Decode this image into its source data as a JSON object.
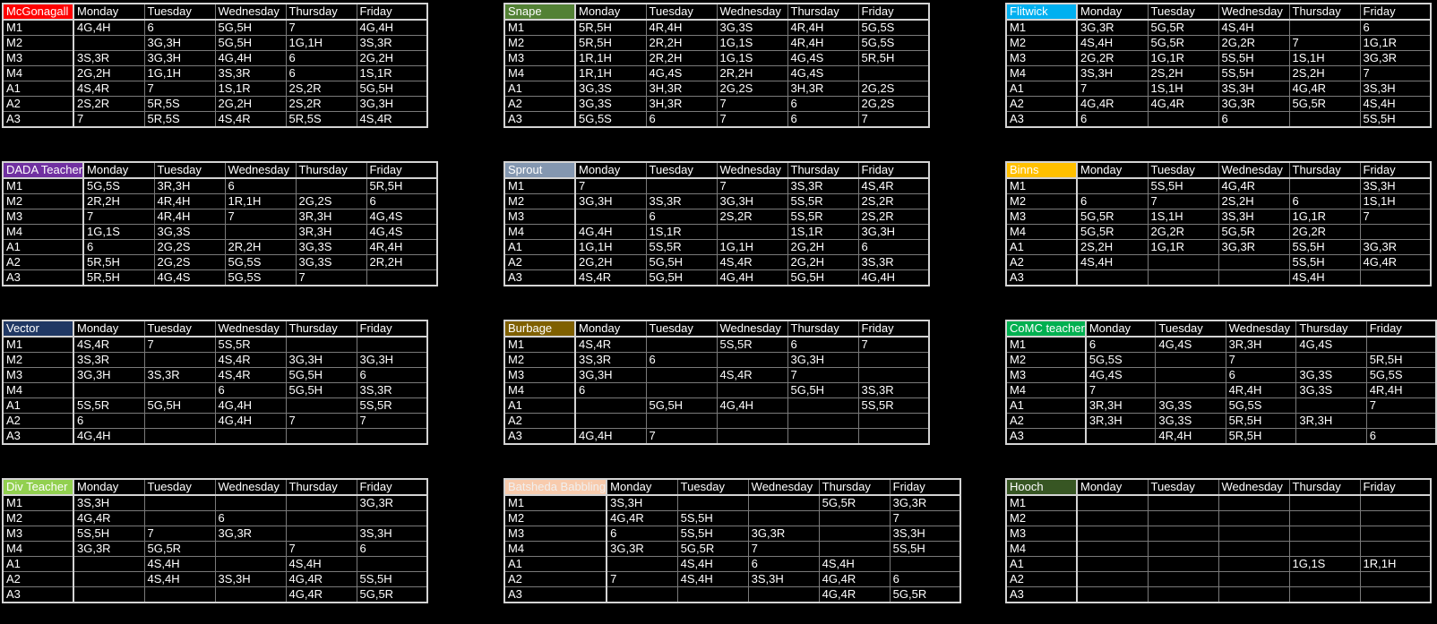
{
  "days": [
    "Monday",
    "Tuesday",
    "Wednesday",
    "Thursday",
    "Friday"
  ],
  "periods": [
    "M1",
    "M2",
    "M3",
    "M4",
    "A1",
    "A2",
    "A3"
  ],
  "blocks": [
    {
      "name": "McGonagall",
      "color": "#ff0000",
      "rows": [
        [
          "4G,4H",
          "6",
          "5G,5H",
          "7",
          "4G,4H"
        ],
        [
          "",
          "3G,3H",
          "5G,5H",
          "1G,1H",
          "3S,3R"
        ],
        [
          "3S,3R",
          "3G,3H",
          "4G,4H",
          "6",
          "2G,2H"
        ],
        [
          "2G,2H",
          "1G,1H",
          "3S,3R",
          "6",
          "1S,1R"
        ],
        [
          "4S,4R",
          "7",
          "1S,1R",
          "2S,2R",
          "5G,5H"
        ],
        [
          "2S,2R",
          "5R,5S",
          "2G,2H",
          "2S,2R",
          "3G,3H"
        ],
        [
          "7",
          "5R,5S",
          "4S,4R",
          "5R,5S",
          "4S,4R"
        ]
      ]
    },
    {
      "name": "Snape",
      "color": "#538135",
      "rows": [
        [
          "5R,5H",
          "4R,4H",
          "3G,3S",
          "4R,4H",
          "5G,5S"
        ],
        [
          "5R,5H",
          "2R,2H",
          "1G,1S",
          "4R,4H",
          "5G,5S"
        ],
        [
          "1R,1H",
          "2R,2H",
          "1G,1S",
          "4G,4S",
          "5R,5H"
        ],
        [
          "1R,1H",
          "4G,4S",
          "2R,2H",
          "4G,4S",
          ""
        ],
        [
          "3G,3S",
          "3H,3R",
          "2G,2S",
          "3H,3R",
          "2G,2S"
        ],
        [
          "3G,3S",
          "3H,3R",
          "7",
          "6",
          "2G,2S"
        ],
        [
          "5G,5S",
          "6",
          "7",
          "6",
          "7"
        ]
      ]
    },
    {
      "name": "Flitwick",
      "color": "#00b0f0",
      "rows": [
        [
          "3G,3R",
          "5G,5R",
          "4S,4H",
          "",
          "6"
        ],
        [
          "4S,4H",
          "5G,5R",
          "2G,2R",
          "7",
          "1G,1R"
        ],
        [
          "2G,2R",
          "1G,1R",
          "5S,5H",
          "1S,1H",
          "3G,3R"
        ],
        [
          "3S,3H",
          "2S,2H",
          "5S,5H",
          "2S,2H",
          "7"
        ],
        [
          "7",
          "1S,1H",
          "3S,3H",
          "4G,4R",
          "3S,3H"
        ],
        [
          "4G,4R",
          "4G,4R",
          "3G,3R",
          "5G,5R",
          "4S,4H"
        ],
        [
          "6",
          "",
          "6",
          "",
          "5S,5H"
        ]
      ]
    },
    {
      "name": "DADA Teacher",
      "color": "#7030a0",
      "rows": [
        [
          "5G,5S",
          "3R,3H",
          "6",
          "",
          "5R,5H"
        ],
        [
          "2R,2H",
          "4R,4H",
          "1R,1H",
          "2G,2S",
          "6"
        ],
        [
          "7",
          "4R,4H",
          "7",
          "3R,3H",
          "4G,4S"
        ],
        [
          "1G,1S",
          "3G,3S",
          "",
          "3R,3H",
          "4G,4S"
        ],
        [
          "6",
          "2G,2S",
          "2R,2H",
          "3G,3S",
          "4R,4H"
        ],
        [
          "5R,5H",
          "2G,2S",
          "5G,5S",
          "3G,3S",
          "2R,2H"
        ],
        [
          "5R,5H",
          "4G,4S",
          "5G,5S",
          "7",
          ""
        ]
      ]
    },
    {
      "name": "Sprout",
      "color": "#8497b0",
      "rows": [
        [
          "7",
          "",
          "7",
          "3S,3R",
          "4S,4R"
        ],
        [
          "3G,3H",
          "3S,3R",
          "3G,3H",
          "5S,5R",
          "2S,2R"
        ],
        [
          "",
          "6",
          "2S,2R",
          "5S,5R",
          "2S,2R"
        ],
        [
          "4G,4H",
          "1S,1R",
          "",
          "1S,1R",
          "3G,3H"
        ],
        [
          "1G,1H",
          "5S,5R",
          "1G,1H",
          "2G,2H",
          "6"
        ],
        [
          "2G,2H",
          "5G,5H",
          "4S,4R",
          "2G,2H",
          "3S,3R"
        ],
        [
          "4S,4R",
          "5G,5H",
          "4G,4H",
          "5G,5H",
          "4G,4H"
        ]
      ]
    },
    {
      "name": "Binns",
      "color": "#ffc000",
      "rows": [
        [
          "",
          "5S,5H",
          "4G,4R",
          "",
          "3S,3H"
        ],
        [
          "6",
          "7",
          "2S,2H",
          "6",
          "1S,1H"
        ],
        [
          "5G,5R",
          "1S,1H",
          "3S,3H",
          "1G,1R",
          "7"
        ],
        [
          "5G,5R",
          "2G,2R",
          "5G,5R",
          "2G,2R",
          ""
        ],
        [
          "2S,2H",
          "1G,1R",
          "3G,3R",
          "5S,5H",
          "3G,3R"
        ],
        [
          "4S,4H",
          "",
          "",
          "5S,5H",
          "4G,4R"
        ],
        [
          "",
          "",
          "",
          "4S,4H",
          ""
        ]
      ]
    },
    {
      "name": "Vector",
      "color": "#203864",
      "rows": [
        [
          "4S,4R",
          "7",
          "5S,5R",
          "",
          ""
        ],
        [
          "3S,3R",
          "",
          "4S,4R",
          "3G,3H",
          "3G,3H"
        ],
        [
          "3G,3H",
          "3S,3R",
          "4S,4R",
          "5G,5H",
          "6"
        ],
        [
          "",
          "",
          "6",
          "5G,5H",
          "3S,3R"
        ],
        [
          "5S,5R",
          "5G,5H",
          "4G,4H",
          "",
          "5S,5R"
        ],
        [
          "6",
          "",
          "4G,4H",
          "7",
          "7"
        ],
        [
          "4G,4H",
          "",
          "",
          "",
          ""
        ]
      ]
    },
    {
      "name": "Burbage",
      "color": "#7f6000",
      "rows": [
        [
          "4S,4R",
          "",
          "5S,5R",
          "6",
          "7"
        ],
        [
          "3S,3R",
          "6",
          "",
          "3G,3H",
          ""
        ],
        [
          "3G,3H",
          "",
          "4S,4R",
          "7",
          ""
        ],
        [
          "6",
          "",
          "",
          "5G,5H",
          "3S,3R"
        ],
        [
          "",
          "5G,5H",
          "4G,4H",
          "",
          "5S,5R"
        ],
        [
          "",
          "",
          "",
          "",
          ""
        ],
        [
          "4G,4H",
          "7",
          "",
          "",
          ""
        ]
      ]
    },
    {
      "name": "CoMC teacher",
      "color": "#00b050",
      "rows": [
        [
          "6",
          "4G,4S",
          "3R,3H",
          "4G,4S",
          ""
        ],
        [
          "5G,5S",
          "",
          "7",
          "",
          "5R,5H"
        ],
        [
          "4G,4S",
          "",
          "6",
          "3G,3S",
          "5G,5S"
        ],
        [
          "7",
          "",
          "4R,4H",
          "3G,3S",
          "4R,4H"
        ],
        [
          "3R,3H",
          "3G,3S",
          "5G,5S",
          "",
          "7"
        ],
        [
          "3R,3H",
          "3G,3S",
          "5R,5H",
          "3R,3H",
          ""
        ],
        [
          "",
          "4R,4H",
          "5R,5H",
          "",
          "6"
        ]
      ]
    },
    {
      "name": "Div Teacher",
      "color": "#92d050",
      "rows": [
        [
          "3S,3H",
          "",
          "",
          "",
          "3G,3R"
        ],
        [
          "4G,4R",
          "",
          "6",
          "",
          ""
        ],
        [
          "5S,5H",
          "7",
          "3G,3R",
          "",
          "3S,3H"
        ],
        [
          "3G,3R",
          "5G,5R",
          "",
          "7",
          "6"
        ],
        [
          "",
          "4S,4H",
          "",
          "4S,4H",
          ""
        ],
        [
          "",
          "4S,4H",
          "3S,3H",
          "4G,4R",
          "5S,5H"
        ],
        [
          "",
          "",
          "",
          "4G,4R",
          "5G,5R"
        ]
      ]
    },
    {
      "name": "Batsheda Babbling",
      "color": "#f8cbad",
      "rows": [
        [
          "3S,3H",
          "",
          "",
          "5G,5R",
          "3G,3R"
        ],
        [
          "4G,4R",
          "5S,5H",
          "",
          "",
          "7"
        ],
        [
          "6",
          "5S,5H",
          "3G,3R",
          "",
          "3S,3H"
        ],
        [
          "3G,3R",
          "5G,5R",
          "7",
          "",
          "5S,5H"
        ],
        [
          "",
          "4S,4H",
          "6",
          "4S,4H",
          ""
        ],
        [
          "7",
          "4S,4H",
          "3S,3H",
          "4G,4R",
          "6"
        ],
        [
          "",
          "",
          "",
          "4G,4R",
          "5G,5R"
        ]
      ]
    },
    {
      "name": "Hooch",
      "color": "#375623",
      "rows": [
        [
          "",
          "",
          "",
          "",
          ""
        ],
        [
          "",
          "",
          "",
          "",
          ""
        ],
        [
          "",
          "",
          "",
          "",
          ""
        ],
        [
          "",
          "",
          "",
          "",
          ""
        ],
        [
          "",
          "",
          "",
          "1G,1S",
          "1R,1H"
        ],
        [
          "",
          "",
          "",
          "",
          ""
        ],
        [
          "",
          "",
          "",
          "",
          ""
        ]
      ]
    }
  ]
}
